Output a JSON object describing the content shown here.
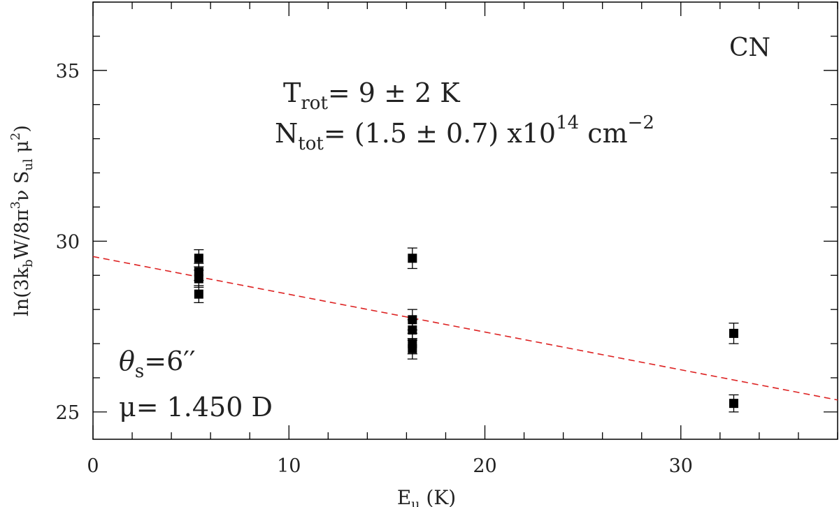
{
  "chart_data": {
    "type": "scatter",
    "title": "",
    "xlabel": {
      "main": "E",
      "sub": "u",
      "rest": " (K)"
    },
    "ylabel": {
      "p1": "ln(3k",
      "sub1": "b",
      "p2": "W/8π",
      "sup1": "3",
      "p3": "ν S",
      "sub2": "ul",
      "p4": " μ",
      "sup2": "2",
      "p5": ")"
    },
    "xlim": [
      0,
      38
    ],
    "ylim": [
      24.2,
      37
    ],
    "xticks": [
      0,
      10,
      20,
      30
    ],
    "yticks": [
      25,
      30,
      35
    ],
    "grid": false,
    "series": [
      {
        "marker": "square",
        "color": "#000000",
        "points": [
          {
            "x": 5.4,
            "y": 29.5,
            "err": 0.25
          },
          {
            "x": 5.4,
            "y": 29.1,
            "err": 0.25
          },
          {
            "x": 5.4,
            "y": 28.9,
            "err": 0.25
          },
          {
            "x": 5.4,
            "y": 28.45,
            "err": 0.25
          },
          {
            "x": 16.3,
            "y": 29.5,
            "err": 0.3
          },
          {
            "x": 16.3,
            "y": 27.7,
            "err": 0.3
          },
          {
            "x": 16.3,
            "y": 27.4,
            "err": 0.3
          },
          {
            "x": 16.3,
            "y": 27.0,
            "err": 0.3
          },
          {
            "x": 16.3,
            "y": 26.85,
            "err": 0.3
          },
          {
            "x": 32.7,
            "y": 27.3,
            "err": 0.3
          },
          {
            "x": 32.7,
            "y": 25.25,
            "err": 0.25
          }
        ]
      }
    ],
    "fit": {
      "style": "dashed",
      "color": "#dd2222",
      "x": [
        0,
        38
      ],
      "y": [
        29.55,
        25.35
      ]
    },
    "annotations": {
      "molecule": "CN",
      "trot": {
        "main": "T",
        "sub": "rot",
        "text": "= 9 ± 2 K"
      },
      "ntot": {
        "main": "N",
        "sub": "tot",
        "text": "= (1.5 ± 0.7) x10",
        "sup": "14",
        "unit": " cm",
        "unitsup": "−2"
      },
      "theta": {
        "main": "θ",
        "sub": "s",
        "text": "=6′′"
      },
      "mu": "μ= 1.450 D"
    }
  }
}
